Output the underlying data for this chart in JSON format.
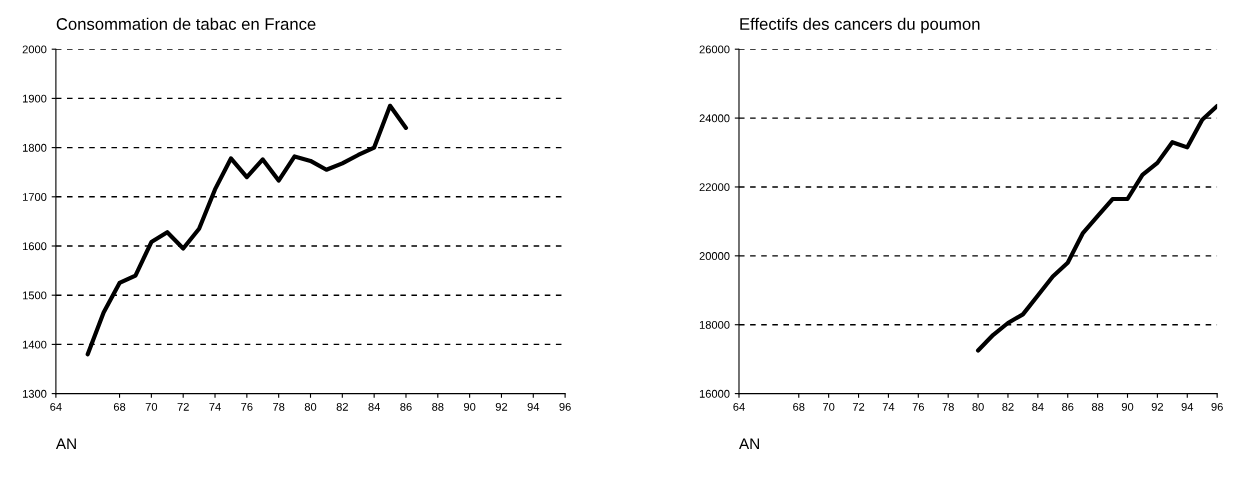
{
  "chart_data": [
    {
      "type": "line",
      "title": "Consommation de tabac en France",
      "xlabel": "AN",
      "x": [
        66,
        67,
        68,
        69,
        70,
        71,
        72,
        73,
        74,
        75,
        76,
        77,
        78,
        79,
        80,
        81,
        82,
        83,
        84,
        85,
        86
      ],
      "series": [
        {
          "color": "#000000",
          "values": [
            1380,
            1465,
            1525,
            1540,
            1608,
            1628,
            1595,
            1635,
            1715,
            1778,
            1740,
            1776,
            1733,
            1782,
            1773,
            1755,
            1768,
            1785,
            1800,
            1885,
            1840
          ]
        }
      ],
      "xlim": [
        64,
        96
      ],
      "xticks": [
        64,
        68,
        70,
        72,
        74,
        76,
        78,
        80,
        82,
        84,
        86,
        88,
        90,
        92,
        94,
        96
      ],
      "ylim": [
        1300,
        2000
      ],
      "yticks": [
        1300,
        1400,
        1500,
        1600,
        1700,
        1800,
        1900,
        2000
      ],
      "grid": "y",
      "legend": false,
      "line_style": "solid",
      "marker": "none"
    },
    {
      "type": "line",
      "title": "Effectifs des cancers du poumon",
      "xlabel": "AN",
      "x": [
        80,
        81,
        82,
        83,
        84,
        85,
        86,
        87,
        88,
        89,
        90,
        91,
        92,
        93,
        94,
        95,
        96
      ],
      "series": [
        {
          "color": "#000000",
          "values": [
            17250,
            17700,
            18050,
            18300,
            18850,
            19400,
            19800,
            20650,
            21150,
            21650,
            21650,
            22350,
            22700,
            23300,
            23150,
            23950,
            24350
          ]
        }
      ],
      "xlim": [
        64,
        96
      ],
      "xticks": [
        64,
        68,
        70,
        72,
        74,
        76,
        78,
        80,
        82,
        84,
        86,
        88,
        90,
        92,
        94,
        96
      ],
      "ylim": [
        16000,
        26000
      ],
      "yticks": [
        16000,
        18000,
        20000,
        22000,
        24000,
        26000
      ],
      "grid": "y",
      "legend": false,
      "line_style": "solid",
      "marker": "none"
    }
  ]
}
